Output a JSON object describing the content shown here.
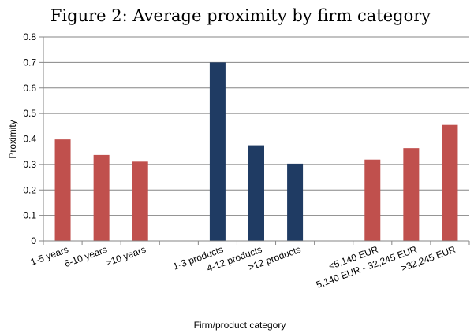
{
  "chart_data": {
    "type": "bar",
    "title": "Figure 2: Average proximity by firm category",
    "xlabel": "Firm/product category",
    "ylabel": "Proximity",
    "ylim": [
      0,
      0.8
    ],
    "yticks": [
      "0",
      "0.1",
      "0.2",
      "0.3",
      "0.4",
      "0.5",
      "0.6",
      "0.7",
      "0.8"
    ],
    "grid": true,
    "categories": [
      "1-5 years",
      "6-10 years",
      ">10 years",
      "",
      "1-3 products",
      "4-12 products",
      ">12 products",
      "",
      "<5,140 EUR",
      "5,140 EUR - 32,245 EUR",
      ">32,245 EUR"
    ],
    "values": [
      0.398,
      0.337,
      0.311,
      null,
      0.7,
      0.375,
      0.303,
      null,
      0.319,
      0.364,
      0.455
    ],
    "colors": [
      "#c0504d",
      "#c0504d",
      "#c0504d",
      null,
      "#1f3b63",
      "#1f3b63",
      "#1f3b63",
      null,
      "#c0504d",
      "#c0504d",
      "#c0504d"
    ],
    "axis_color": "#868686",
    "grid_color": "#868686"
  }
}
